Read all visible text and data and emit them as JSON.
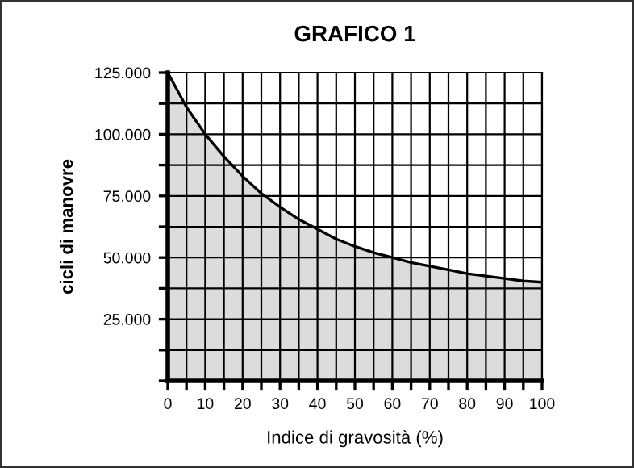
{
  "chart_data": {
    "type": "area",
    "title": "GRAFICO 1",
    "xlabel": "Indice di gravosità (%)",
    "ylabel": "cicli di manovre",
    "x": [
      0,
      5,
      10,
      15,
      20,
      25,
      30,
      35,
      40,
      45,
      50,
      55,
      60,
      65,
      70,
      75,
      80,
      85,
      90,
      95,
      100
    ],
    "series": [
      {
        "color": "#dcdcdc",
        "values": [
          125000,
          111000,
          100000,
          91000,
          83000,
          76000,
          70500,
          65500,
          61500,
          57500,
          54500,
          52000,
          50000,
          48000,
          46500,
          45000,
          43500,
          42500,
          41500,
          40500,
          40000
        ]
      }
    ],
    "xlim": [
      0,
      100
    ],
    "ylim": [
      0,
      125000
    ],
    "xticks": [
      0,
      {
        "value": 5,
        "label": null
      },
      10,
      {
        "value": 15,
        "label": null
      },
      20,
      {
        "value": 25,
        "label": null
      },
      30,
      {
        "value": 35,
        "label": null
      },
      40,
      {
        "value": 45,
        "label": null
      },
      50,
      {
        "value": 55,
        "label": null
      },
      60,
      {
        "value": 65,
        "label": null
      },
      70,
      {
        "value": 75,
        "label": null
      },
      80,
      {
        "value": 85,
        "label": null
      },
      90,
      {
        "value": 95,
        "label": null
      },
      100
    ],
    "yticks": [
      {
        "value": 0,
        "label": null
      },
      {
        "value": 12500,
        "label": null
      },
      {
        "value": 25000,
        "label": "25.000"
      },
      {
        "value": 37500,
        "label": null
      },
      {
        "value": 50000,
        "label": "50.000"
      },
      {
        "value": 62500,
        "label": null
      },
      {
        "value": 75000,
        "label": "75.000"
      },
      {
        "value": 87500,
        "label": null
      },
      {
        "value": 100000,
        "label": "100.000"
      },
      {
        "value": 112500,
        "label": null
      },
      {
        "value": 125000,
        "label": "125.000"
      }
    ],
    "grid": true,
    "legend": false
  }
}
